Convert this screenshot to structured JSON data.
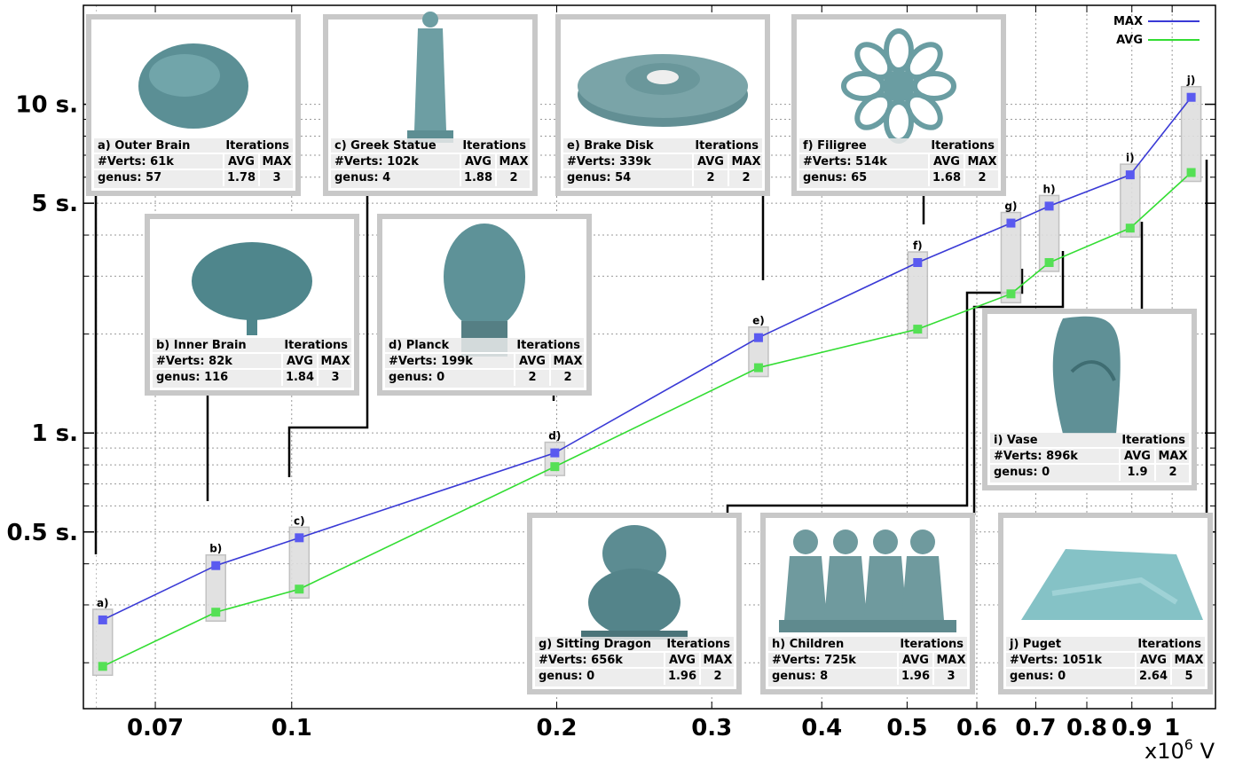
{
  "chart_data": {
    "type": "line",
    "x_scale": "log",
    "y_scale": "log",
    "xlim": [
      0.058,
      1.12
    ],
    "ylim": [
      0.145,
      20
    ],
    "grid": true,
    "legend_position": "top-right",
    "x_ticks": [
      0.07,
      0.1,
      0.2,
      0.3,
      0.4,
      0.5,
      0.6,
      0.7,
      0.8,
      0.9,
      1
    ],
    "x_tick_labels": [
      "0.07",
      "0.1",
      "0.2",
      "0.3",
      "0.4",
      "0.5",
      "0.6",
      "0.7",
      "0.8",
      "0.9",
      "1"
    ],
    "x_unit_label": {
      "prefix": "x10",
      "exponent": "6",
      "suffix": " V"
    },
    "y_ticks": [
      0.5,
      1,
      5,
      10
    ],
    "y_tick_labels": [
      "0.5 s.",
      "1 s.",
      "5 s.",
      "10 s."
    ],
    "x": [
      0.061,
      0.082,
      0.102,
      0.199,
      0.339,
      0.514,
      0.656,
      0.725,
      0.896,
      1.051
    ],
    "point_labels": [
      "a)",
      "b)",
      "c)",
      "d)",
      "e)",
      "f)",
      "g)",
      "h)",
      "i)",
      "j)"
    ],
    "series": [
      {
        "name": "MAX",
        "color": "#3a3ad6",
        "marker_color": "#5a5af0",
        "y": [
          0.27,
          0.395,
          0.48,
          0.87,
          1.95,
          3.3,
          4.35,
          4.9,
          6.1,
          10.5
        ]
      },
      {
        "name": "AVG",
        "color": "#33dd33",
        "marker_color": "#55e055",
        "y": [
          0.195,
          0.285,
          0.335,
          0.79,
          1.58,
          2.07,
          2.65,
          3.3,
          4.2,
          6.2
        ]
      }
    ],
    "models": [
      {
        "id": "a",
        "title": "a) Outer Brain",
        "verts": "#Verts: 61k",
        "genus": "genus: 57",
        "avg": "1.78",
        "max": "3"
      },
      {
        "id": "b",
        "title": "b) Inner Brain",
        "verts": "#Verts: 82k",
        "genus": "genus: 116",
        "avg": "1.84",
        "max": "3"
      },
      {
        "id": "c",
        "title": "c) Greek Statue",
        "verts": "#Verts: 102k",
        "genus": "genus: 4",
        "avg": "1.88",
        "max": "2"
      },
      {
        "id": "d",
        "title": "d) Planck",
        "verts": "#Verts: 199k",
        "genus": "genus: 0",
        "avg": "2",
        "max": "2"
      },
      {
        "id": "e",
        "title": "e) Brake Disk",
        "verts": "#Verts: 339k",
        "genus": "genus: 54",
        "avg": "2",
        "max": "2"
      },
      {
        "id": "f",
        "title": "f) Filigree",
        "verts": "#Verts: 514k",
        "genus": "genus: 65",
        "avg": "1.68",
        "max": "2"
      },
      {
        "id": "g",
        "title": "g) Sitting Dragon",
        "verts": "#Verts: 656k",
        "genus": "genus: 0",
        "avg": "1.96",
        "max": "2"
      },
      {
        "id": "h",
        "title": "h) Children",
        "verts": "#Verts: 725k",
        "genus": "genus: 8",
        "avg": "1.96",
        "max": "3"
      },
      {
        "id": "i",
        "title": "i) Vase",
        "verts": "#Verts: 896k",
        "genus": "genus: 0",
        "avg": "1.9",
        "max": "2"
      },
      {
        "id": "j",
        "title": "j) Puget",
        "verts": "#Verts: 1051k",
        "genus": "genus: 0",
        "avg": "2.64",
        "max": "5"
      }
    ],
    "table_headers": {
      "iterations": "Iterations",
      "avg": "AVG",
      "max": "MAX"
    }
  }
}
